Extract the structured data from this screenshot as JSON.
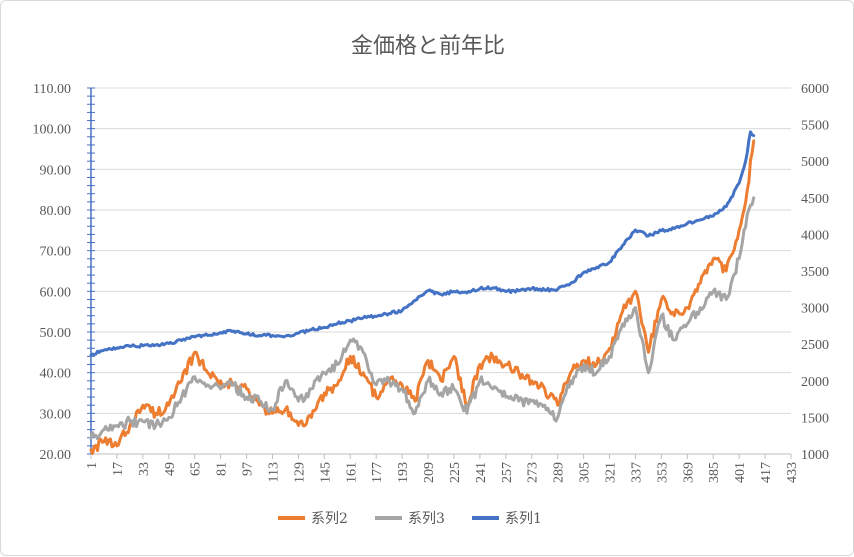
{
  "chart_data": {
    "type": "line",
    "title": "金価格と前年比",
    "xlabel": "",
    "ylabel": "",
    "x_tick_labels": [
      "1",
      "17",
      "33",
      "49",
      "65",
      "81",
      "97",
      "113",
      "129",
      "145",
      "161",
      "177",
      "193",
      "209",
      "225",
      "241",
      "257",
      "273",
      "289",
      "305",
      "321",
      "337",
      "353",
      "369",
      "385",
      "401",
      "417",
      "433"
    ],
    "x_range": [
      1,
      433
    ],
    "y_left": {
      "ticks": [
        "20.00",
        "30.00",
        "40.00",
        "50.00",
        "60.00",
        "70.00",
        "80.00",
        "90.00",
        "100.00",
        "110.00"
      ],
      "min": 20,
      "max": 110
    },
    "y_right": {
      "ticks": [
        "1000",
        "1500",
        "2000",
        "2500",
        "3000",
        "3500",
        "4000",
        "4500",
        "5000",
        "5500",
        "6000"
      ],
      "min": 1000,
      "max": 6000
    },
    "grid": true,
    "legend_position": "bottom",
    "series": [
      {
        "name": "系列2",
        "color": "#ED7D31",
        "axis": "left",
        "points": [
          [
            1,
            21
          ],
          [
            9,
            23
          ],
          [
            17,
            22
          ],
          [
            25,
            27
          ],
          [
            33,
            32
          ],
          [
            41,
            30
          ],
          [
            49,
            32
          ],
          [
            57,
            38
          ],
          [
            65,
            45
          ],
          [
            73,
            40
          ],
          [
            81,
            38
          ],
          [
            89,
            37
          ],
          [
            97,
            36
          ],
          [
            105,
            32
          ],
          [
            113,
            30
          ],
          [
            121,
            31
          ],
          [
            129,
            27
          ],
          [
            137,
            29
          ],
          [
            145,
            35
          ],
          [
            153,
            37
          ],
          [
            161,
            44
          ],
          [
            169,
            40
          ],
          [
            177,
            34
          ],
          [
            185,
            38
          ],
          [
            193,
            37
          ],
          [
            201,
            33
          ],
          [
            209,
            43
          ],
          [
            217,
            38
          ],
          [
            225,
            44
          ],
          [
            233,
            32
          ],
          [
            241,
            42
          ],
          [
            249,
            44
          ],
          [
            257,
            42
          ],
          [
            265,
            40
          ],
          [
            273,
            38
          ],
          [
            281,
            36
          ],
          [
            289,
            32
          ],
          [
            297,
            40
          ],
          [
            305,
            43
          ],
          [
            313,
            42
          ],
          [
            321,
            46
          ],
          [
            329,
            55
          ],
          [
            337,
            60
          ],
          [
            345,
            45
          ],
          [
            353,
            58
          ],
          [
            361,
            54
          ],
          [
            369,
            56
          ],
          [
            377,
            62
          ],
          [
            385,
            68
          ],
          [
            393,
            65
          ],
          [
            401,
            75
          ],
          [
            406,
            85
          ],
          [
            410,
            97
          ]
        ]
      },
      {
        "name": "系列3",
        "color": "#A5A5A5",
        "axis": "left",
        "points": [
          [
            1,
            24
          ],
          [
            9,
            26
          ],
          [
            17,
            27
          ],
          [
            25,
            28
          ],
          [
            33,
            28
          ],
          [
            41,
            27
          ],
          [
            49,
            29
          ],
          [
            57,
            34
          ],
          [
            65,
            39
          ],
          [
            73,
            37
          ],
          [
            81,
            36
          ],
          [
            89,
            37
          ],
          [
            97,
            34
          ],
          [
            105,
            33
          ],
          [
            113,
            31
          ],
          [
            121,
            38
          ],
          [
            129,
            33
          ],
          [
            137,
            36
          ],
          [
            145,
            40
          ],
          [
            153,
            42
          ],
          [
            161,
            48
          ],
          [
            169,
            45
          ],
          [
            177,
            37
          ],
          [
            185,
            38
          ],
          [
            193,
            36
          ],
          [
            201,
            30
          ],
          [
            209,
            38
          ],
          [
            217,
            35
          ],
          [
            225,
            36
          ],
          [
            233,
            30
          ],
          [
            241,
            38
          ],
          [
            249,
            36
          ],
          [
            257,
            34
          ],
          [
            265,
            33
          ],
          [
            273,
            33
          ],
          [
            281,
            32
          ],
          [
            289,
            29
          ],
          [
            297,
            38
          ],
          [
            305,
            42
          ],
          [
            313,
            40
          ],
          [
            321,
            44
          ],
          [
            329,
            52
          ],
          [
            337,
            56
          ],
          [
            345,
            40
          ],
          [
            353,
            54
          ],
          [
            361,
            48
          ],
          [
            369,
            52
          ],
          [
            377,
            56
          ],
          [
            385,
            60
          ],
          [
            393,
            58
          ],
          [
            401,
            68
          ],
          [
            406,
            79
          ],
          [
            410,
            83
          ]
        ]
      },
      {
        "name": "系列1",
        "color": "#4472C4",
        "axis": "right",
        "points": [
          [
            1,
            2350
          ],
          [
            9,
            2420
          ],
          [
            17,
            2450
          ],
          [
            25,
            2470
          ],
          [
            33,
            2480
          ],
          [
            41,
            2490
          ],
          [
            49,
            2510
          ],
          [
            57,
            2550
          ],
          [
            65,
            2600
          ],
          [
            73,
            2620
          ],
          [
            81,
            2660
          ],
          [
            89,
            2680
          ],
          [
            97,
            2640
          ],
          [
            105,
            2620
          ],
          [
            113,
            2620
          ],
          [
            121,
            2610
          ],
          [
            129,
            2650
          ],
          [
            137,
            2700
          ],
          [
            145,
            2730
          ],
          [
            153,
            2780
          ],
          [
            161,
            2820
          ],
          [
            169,
            2860
          ],
          [
            177,
            2880
          ],
          [
            185,
            2920
          ],
          [
            193,
            2960
          ],
          [
            201,
            3100
          ],
          [
            209,
            3230
          ],
          [
            217,
            3180
          ],
          [
            225,
            3220
          ],
          [
            233,
            3200
          ],
          [
            241,
            3260
          ],
          [
            249,
            3270
          ],
          [
            257,
            3220
          ],
          [
            265,
            3230
          ],
          [
            273,
            3260
          ],
          [
            281,
            3240
          ],
          [
            289,
            3250
          ],
          [
            297,
            3330
          ],
          [
            305,
            3480
          ],
          [
            313,
            3550
          ],
          [
            321,
            3620
          ],
          [
            329,
            3850
          ],
          [
            337,
            4060
          ],
          [
            345,
            3980
          ],
          [
            353,
            4050
          ],
          [
            361,
            4080
          ],
          [
            369,
            4150
          ],
          [
            377,
            4200
          ],
          [
            385,
            4250
          ],
          [
            393,
            4380
          ],
          [
            401,
            4700
          ],
          [
            405,
            5000
          ],
          [
            408,
            5400
          ],
          [
            410,
            5350
          ]
        ]
      }
    ]
  }
}
